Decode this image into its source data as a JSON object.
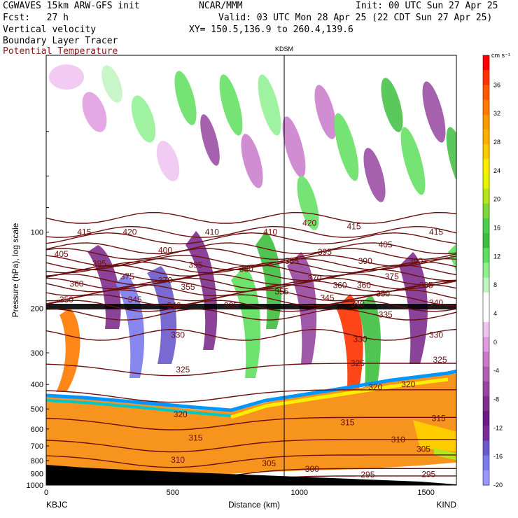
{
  "header": {
    "model": "CGWAVES 15km ARW-GFS init",
    "forecast": "Fcst:   27 h",
    "field1": "Vertical velocity",
    "field2": "Boundary Layer Tracer",
    "field3": "Potential Temperature",
    "center": "NCAR/MMM",
    "init": "Init: 00 UTC Sun 27 Apr 25",
    "valid": "Valid: 03 UTC Mon 28 Apr 25 (22 CDT Sun 27 Apr 25)",
    "xy": "XY= 150.5,136.9 to 260.4,139.6"
  },
  "colors": {
    "theta": "#6b0f0f",
    "field3_text": "#8b1a1a",
    "terrain_fill": "#f7941d"
  },
  "chart_data": {
    "type": "heatmap",
    "title": "",
    "xlabel": "Distance (km)",
    "ylabel": "Pressure (hPa), log scale",
    "x_ticks": [
      0,
      500,
      1000,
      1500
    ],
    "y_ticks": [
      100,
      200,
      300,
      400,
      500,
      600,
      700,
      800,
      900,
      1000
    ],
    "xlim": [
      0,
      1620
    ],
    "ylim": [
      1000,
      20
    ],
    "y_scale": "log",
    "left_station": "KBJC",
    "right_station": "KIND",
    "marker_station": "KDSM",
    "marker_x": 940,
    "colorbar": {
      "unit": "cm s⁻¹",
      "labels": [
        36,
        32,
        28,
        24,
        20,
        16,
        12,
        8,
        4,
        0,
        -4,
        -8,
        -12,
        -16,
        -20
      ],
      "colors": [
        "#ff0000",
        "#ff3200",
        "#ff5a00",
        "#ff7a00",
        "#ff9900",
        "#ffb000",
        "#ffcc00",
        "#ffee00",
        "#e5f500",
        "#b5e61d",
        "#7fd83a",
        "#4ccf4c",
        "#3fbf3f",
        "#5ee05e",
        "#8ff08f",
        "#bff5bf",
        "#ffffff",
        "#ffffff",
        "#f0c2f0",
        "#e09ae0",
        "#c97ac9",
        "#b060b0",
        "#9646a0",
        "#7f2f8f",
        "#6b1b86",
        "#7a2c9a",
        "#6a5acd",
        "#7b7bee",
        "#9999ff"
      ]
    },
    "theta_labels": [
      {
        "x": 150,
        "p": 100,
        "text": "415"
      },
      {
        "x": 330,
        "p": 100,
        "text": "420"
      },
      {
        "x": 655,
        "p": 100,
        "text": "410"
      },
      {
        "x": 885,
        "p": 100,
        "text": "410"
      },
      {
        "x": 1040,
        "p": 92,
        "text": "420"
      },
      {
        "x": 1215,
        "p": 95,
        "text": "415"
      },
      {
        "x": 1540,
        "p": 100,
        "text": "415"
      },
      {
        "x": 60,
        "p": 122,
        "text": "405"
      },
      {
        "x": 210,
        "p": 133,
        "text": "395"
      },
      {
        "x": 470,
        "p": 118,
        "text": "400"
      },
      {
        "x": 1100,
        "p": 120,
        "text": "395"
      },
      {
        "x": 1340,
        "p": 112,
        "text": "405"
      },
      {
        "x": 970,
        "p": 130,
        "text": "385"
      },
      {
        "x": 1260,
        "p": 130,
        "text": "390"
      },
      {
        "x": 1460,
        "p": 130,
        "text": "390"
      },
      {
        "x": 590,
        "p": 135,
        "text": "395"
      },
      {
        "x": 790,
        "p": 140,
        "text": "380"
      },
      {
        "x": 320,
        "p": 150,
        "text": "375"
      },
      {
        "x": 1365,
        "p": 150,
        "text": "375"
      },
      {
        "x": 1060,
        "p": 152,
        "text": "370"
      },
      {
        "x": 470,
        "p": 155,
        "text": "370"
      },
      {
        "x": 1255,
        "p": 162,
        "text": "360"
      },
      {
        "x": 1500,
        "p": 162,
        "text": "365"
      },
      {
        "x": 560,
        "p": 165,
        "text": "355"
      },
      {
        "x": 930,
        "p": 172,
        "text": "355"
      },
      {
        "x": 80,
        "p": 185,
        "text": "350"
      },
      {
        "x": 1330,
        "p": 175,
        "text": "350"
      },
      {
        "x": 350,
        "p": 185,
        "text": "345"
      },
      {
        "x": 1110,
        "p": 182,
        "text": "345"
      },
      {
        "x": 505,
        "p": 195,
        "text": "340"
      },
      {
        "x": 1230,
        "p": 192,
        "text": "340"
      },
      {
        "x": 1540,
        "p": 190,
        "text": "340"
      },
      {
        "x": 730,
        "p": 195,
        "text": "335"
      },
      {
        "x": 1340,
        "p": 212,
        "text": "335"
      },
      {
        "x": 520,
        "p": 255,
        "text": "330"
      },
      {
        "x": 1240,
        "p": 265,
        "text": "330"
      },
      {
        "x": 1540,
        "p": 255,
        "text": "330"
      },
      {
        "x": 540,
        "p": 350,
        "text": "325"
      },
      {
        "x": 1230,
        "p": 330,
        "text": "325"
      },
      {
        "x": 1555,
        "p": 320,
        "text": "325"
      },
      {
        "x": 1300,
        "p": 410,
        "text": "320"
      },
      {
        "x": 1430,
        "p": 400,
        "text": "320"
      },
      {
        "x": 530,
        "p": 525,
        "text": "320"
      },
      {
        "x": 1190,
        "p": 565,
        "text": "315"
      },
      {
        "x": 1550,
        "p": 545,
        "text": "315"
      },
      {
        "x": 590,
        "p": 650,
        "text": "315"
      },
      {
        "x": 1390,
        "p": 660,
        "text": "310"
      },
      {
        "x": 520,
        "p": 795,
        "text": "310"
      },
      {
        "x": 1490,
        "p": 720,
        "text": "305"
      },
      {
        "x": 880,
        "p": 820,
        "text": "305"
      },
      {
        "x": 1050,
        "p": 865,
        "text": "300"
      },
      {
        "x": 1270,
        "p": 910,
        "text": "295"
      },
      {
        "x": 1510,
        "p": 905,
        "text": "295"
      },
      {
        "x": 160,
        "p": 880,
        "text": "310"
      },
      {
        "x": 120,
        "p": 160,
        "text": "360"
      },
      {
        "x": 1160,
        "p": 162,
        "text": "360"
      }
    ]
  }
}
